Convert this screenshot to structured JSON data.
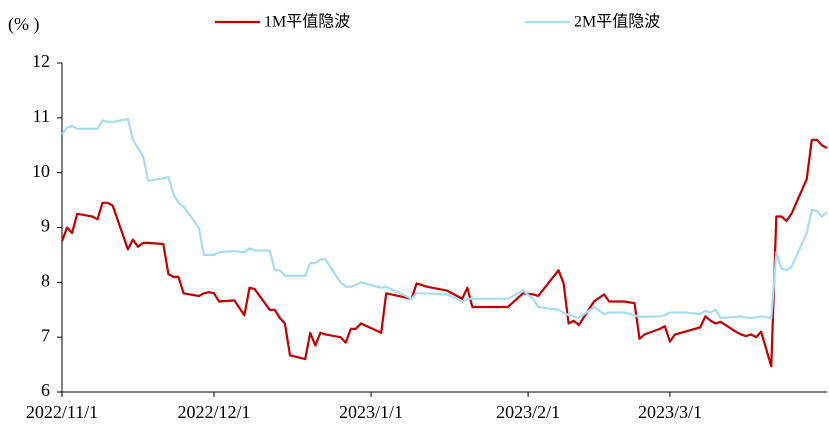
{
  "chart_data": {
    "type": "line",
    "y_label": "(% )",
    "x": [
      "2022/11/1",
      "2022/11/2",
      "2022/11/3",
      "2022/11/4",
      "2022/11/7",
      "2022/11/8",
      "2022/11/9",
      "2022/11/10",
      "2022/11/11",
      "2022/11/14",
      "2022/11/15",
      "2022/11/16",
      "2022/11/17",
      "2022/11/18",
      "2022/11/21",
      "2022/11/22",
      "2022/11/23",
      "2022/11/24",
      "2022/11/25",
      "2022/11/28",
      "2022/11/29",
      "2022/11/30",
      "2022/12/1",
      "2022/12/2",
      "2022/12/5",
      "2022/12/7",
      "2022/12/8",
      "2022/12/9",
      "2022/12/12",
      "2022/12/13",
      "2022/12/14",
      "2022/12/15",
      "2022/12/16",
      "2022/12/19",
      "2022/12/20",
      "2022/12/21",
      "2022/12/22",
      "2022/12/23",
      "2022/12/26",
      "2022/12/27",
      "2022/12/28",
      "2022/12/29",
      "2022/12/30",
      "2023/1/3",
      "2023/1/4",
      "2023/1/9",
      "2023/1/10",
      "2023/1/12",
      "2023/1/16",
      "2023/1/18",
      "2023/1/19",
      "2023/1/20",
      "2023/1/21",
      "2023/1/28",
      "2023/1/31",
      "2023/2/2",
      "2023/2/3",
      "2023/2/7",
      "2023/2/8",
      "2023/2/9",
      "2023/2/10",
      "2023/2/11",
      "2023/2/14",
      "2023/2/16",
      "2023/2/17",
      "2023/2/20",
      "2023/2/22",
      "2023/2/23",
      "2023/2/24",
      "2023/2/27",
      "2023/2/28",
      "2023/3/1",
      "2023/3/2",
      "2023/3/4",
      "2023/3/7",
      "2023/3/8",
      "2023/3/9",
      "2023/3/10",
      "2023/3/11",
      "2023/3/14",
      "2023/3/15",
      "2023/3/16",
      "2023/3/17",
      "2023/3/18",
      "2023/3/19",
      "2023/3/21",
      "2023/3/22",
      "2023/3/23",
      "2023/3/24",
      "2023/3/25",
      "2023/3/28",
      "2023/3/29",
      "2023/3/30",
      "2023/3/31",
      "2023/4/1"
    ],
    "series": [
      {
        "name": "1M平值隐波",
        "color": "#c00000",
        "values": [
          8.75,
          9.0,
          8.9,
          9.25,
          9.2,
          9.15,
          9.45,
          9.45,
          9.4,
          8.6,
          8.78,
          8.65,
          8.72,
          8.72,
          8.7,
          8.15,
          8.1,
          8.1,
          7.8,
          7.75,
          7.8,
          7.82,
          7.8,
          7.65,
          7.67,
          7.4,
          7.9,
          7.88,
          7.5,
          7.5,
          7.35,
          7.25,
          6.67,
          6.6,
          7.08,
          6.85,
          7.08,
          7.05,
          7.0,
          6.9,
          7.15,
          7.15,
          7.25,
          7.08,
          7.8,
          7.7,
          7.98,
          7.92,
          7.85,
          7.75,
          7.7,
          7.9,
          7.55,
          7.55,
          7.8,
          7.78,
          7.75,
          8.22,
          7.98,
          7.25,
          7.3,
          7.22,
          7.65,
          7.78,
          7.65,
          7.65,
          7.62,
          6.97,
          7.05,
          7.15,
          7.2,
          6.92,
          7.05,
          7.1,
          7.18,
          7.38,
          7.3,
          7.25,
          7.28,
          7.1,
          7.05,
          7.02,
          7.05,
          7.0,
          7.1,
          6.47,
          9.2,
          9.2,
          9.12,
          9.25,
          9.88,
          10.6,
          10.6,
          10.5,
          10.45
        ]
      },
      {
        "name": "2M平值隐波",
        "color": "#a6dcef",
        "values": [
          10.7,
          10.82,
          10.85,
          10.8,
          10.8,
          10.8,
          10.95,
          10.93,
          10.92,
          10.98,
          10.6,
          10.45,
          10.3,
          9.85,
          9.9,
          9.92,
          9.6,
          9.45,
          9.38,
          9.0,
          8.5,
          8.5,
          8.5,
          8.55,
          8.57,
          8.55,
          8.62,
          8.58,
          8.58,
          8.22,
          8.22,
          8.12,
          8.12,
          8.12,
          8.35,
          8.35,
          8.42,
          8.42,
          8.0,
          7.92,
          7.92,
          7.95,
          8.0,
          7.9,
          7.92,
          7.7,
          7.8,
          7.8,
          7.78,
          7.7,
          7.65,
          7.7,
          7.7,
          7.7,
          7.85,
          7.7,
          7.55,
          7.5,
          7.45,
          7.4,
          7.38,
          7.35,
          7.55,
          7.42,
          7.45,
          7.45,
          7.4,
          7.37,
          7.37,
          7.38,
          7.4,
          7.45,
          7.45,
          7.45,
          7.42,
          7.48,
          7.45,
          7.5,
          7.35,
          7.37,
          7.38,
          7.36,
          7.35,
          7.36,
          7.38,
          7.35,
          8.55,
          8.25,
          8.22,
          8.28,
          8.9,
          9.32,
          9.3,
          9.2,
          9.28
        ]
      }
    ],
    "xlim": [
      "2022/11/1",
      "2023/4/1"
    ],
    "xticks": [
      "2022/11/1",
      "2022/12/1",
      "2023/1/1",
      "2023/2/1",
      "2023/3/1"
    ],
    "ylim": [
      6,
      12
    ],
    "yticks": [
      6,
      7,
      8,
      9,
      10,
      11,
      12
    ]
  }
}
